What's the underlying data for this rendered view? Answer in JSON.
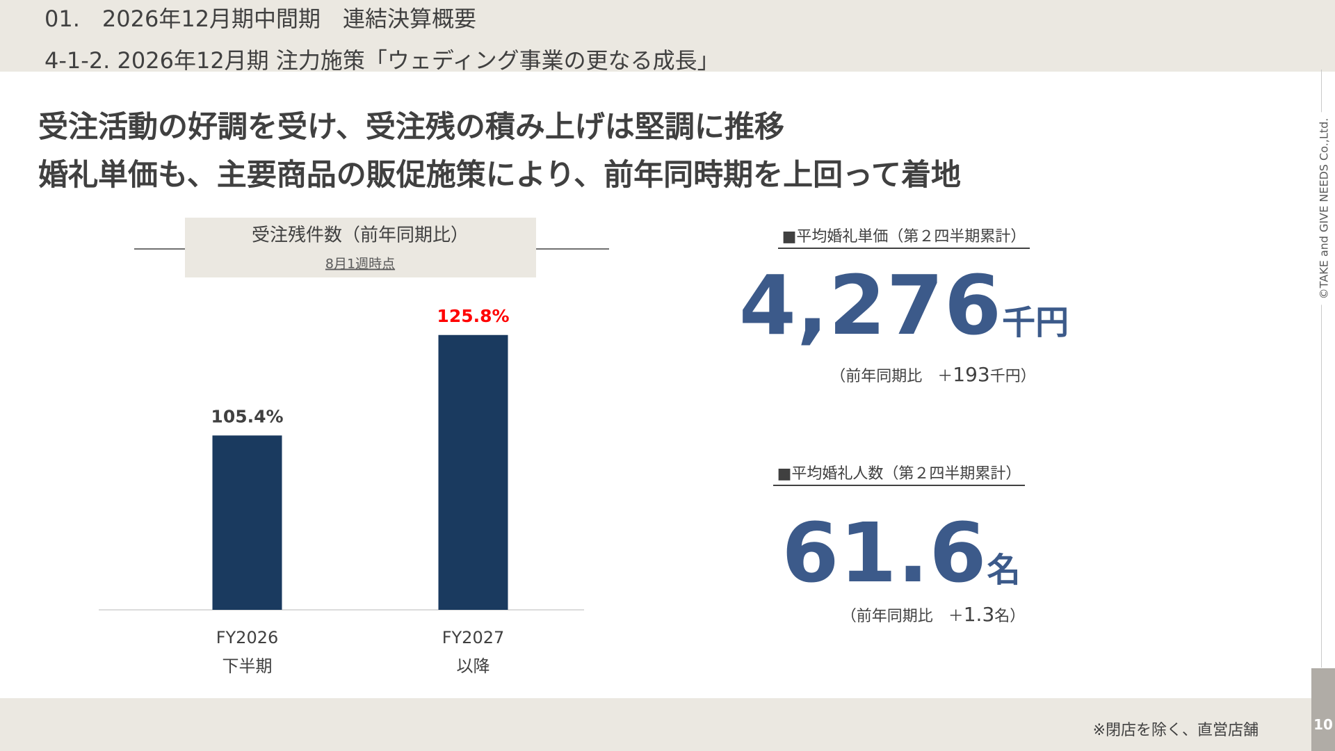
{
  "header": {
    "section": "01.　2026年12月期中間期　連結決算概要",
    "subsection": "4-1-2. 2026年12月期 注力施策「ウェディング事業の更なる成長」"
  },
  "headline": [
    "受注活動の好調を受け、受注残の積み上げは堅調に推移",
    "婚礼単価も、主要商品の販促施策により、前年同時期を上回って着地"
  ],
  "chart_data": {
    "type": "bar",
    "title": "受注残件数（前年同期比）",
    "subtitle": "8月1週時点",
    "categories": [
      "FY2026\n下半期",
      "FY2027\n以降"
    ],
    "values": [
      105.4,
      125.8
    ],
    "value_labels": [
      "105.4%",
      "125.8%"
    ],
    "color": "#1a3a5f",
    "value_label_colors": [
      "#404040",
      "#ff0000"
    ],
    "ylim": [
      70,
      130
    ]
  },
  "kpis": [
    {
      "label": "■平均婚礼単価（第２四半期累計）",
      "value": "4,276",
      "unit": "千円",
      "note_prefix": "（前年同期比　＋",
      "note_value": "193",
      "note_suffix": "千円）"
    },
    {
      "label": "■平均婚礼人数（第２四半期累計）",
      "value": "61.6",
      "unit": "名",
      "note_prefix": "（前年同期比　＋",
      "note_value": "1.3",
      "note_suffix": "名）"
    }
  ],
  "footer": {
    "note": "※閉店を除く、直営店舗",
    "page": "10",
    "copyright": "©TAKE and GIVE NEEDS Co.,Ltd."
  }
}
